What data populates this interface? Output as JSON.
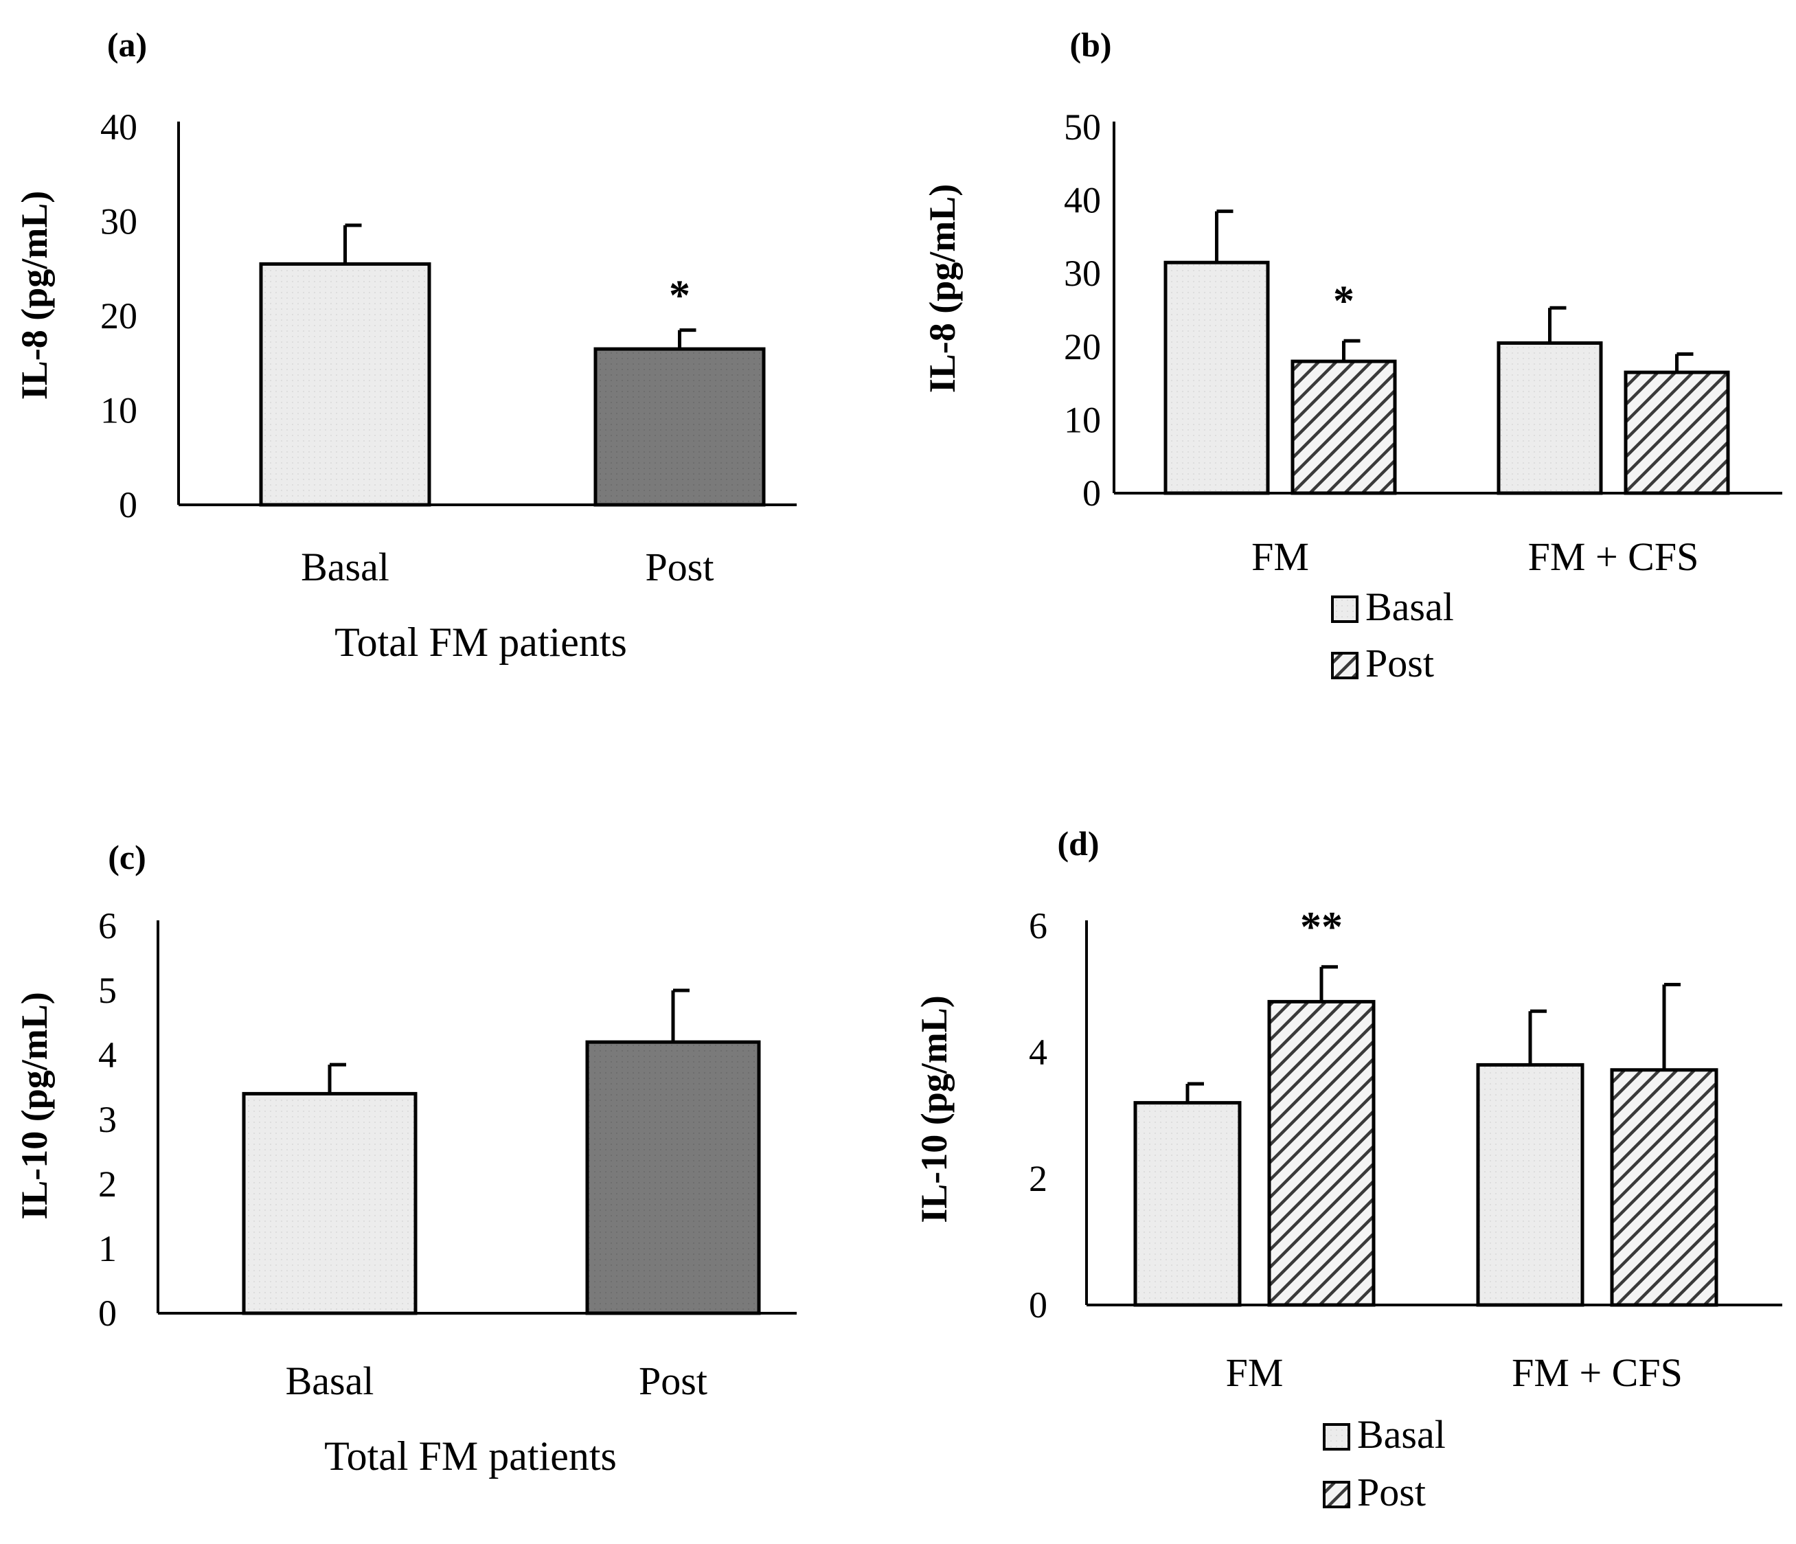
{
  "colors": {
    "basal_fill": "#ececec",
    "post_solid_fill": "#7a7a7a",
    "hatch_bg": "#f4f4f4",
    "hatch_line": "#3a3a3a",
    "stroke": "#000000"
  },
  "legend": [
    {
      "name": "Basal",
      "style": "basal"
    },
    {
      "name": "Post",
      "style": "hatch"
    }
  ],
  "chart_data": [
    {
      "panel": "(a)",
      "type": "bar",
      "ylabel": "IL-8 (pg/mL)",
      "xlabel": "Total FM patients",
      "ylim": [
        0,
        40
      ],
      "yticks": [
        0,
        10,
        20,
        30,
        40
      ],
      "categories": [
        "Basal",
        "Post"
      ],
      "values": [
        25.5,
        16.5
      ],
      "errors": [
        4.1,
        2.0
      ],
      "styles": [
        "basal",
        "solid"
      ],
      "annotations": [
        {
          "index": 1,
          "text": "*"
        }
      ]
    },
    {
      "panel": "(b)",
      "type": "bar",
      "ylabel": "IL-8 (pg/mL)",
      "xlabel": "",
      "ylim": [
        0,
        50
      ],
      "yticks": [
        0,
        10,
        20,
        30,
        40,
        50
      ],
      "categories": [
        "FM",
        "FM + CFS"
      ],
      "series": [
        {
          "name": "Basal",
          "style": "basal",
          "values": [
            31.5,
            20.5
          ],
          "errors": [
            7.0,
            4.8
          ]
        },
        {
          "name": "Post",
          "style": "hatch",
          "values": [
            18.0,
            16.5
          ],
          "errors": [
            2.8,
            2.5
          ]
        }
      ],
      "annotations": [
        {
          "category": 0,
          "series": 1,
          "text": "*"
        }
      ]
    },
    {
      "panel": "(c)",
      "type": "bar",
      "ylabel": "IL-10 (pg/mL)",
      "xlabel": "Total FM patients",
      "ylim": [
        0,
        6
      ],
      "yticks": [
        0,
        1,
        2,
        3,
        4,
        5,
        6
      ],
      "categories": [
        "Basal",
        "Post"
      ],
      "values": [
        3.4,
        4.2
      ],
      "errors": [
        0.45,
        0.8
      ],
      "styles": [
        "basal",
        "solid"
      ],
      "annotations": []
    },
    {
      "panel": "(d)",
      "type": "bar",
      "ylabel": "IL-10 (pg/mL)",
      "xlabel": "",
      "ylim": [
        0,
        6
      ],
      "yticks": [
        0,
        2,
        4,
        6
      ],
      "categories": [
        "FM",
        "FM + CFS"
      ],
      "series": [
        {
          "name": "Basal",
          "style": "basal",
          "values": [
            3.2,
            3.8
          ],
          "errors": [
            0.3,
            0.85
          ]
        },
        {
          "name": "Post",
          "style": "hatch",
          "values": [
            4.8,
            3.72
          ],
          "errors": [
            0.55,
            1.35
          ]
        }
      ],
      "annotations": [
        {
          "category": 0,
          "series": 1,
          "text": "**"
        }
      ]
    }
  ]
}
